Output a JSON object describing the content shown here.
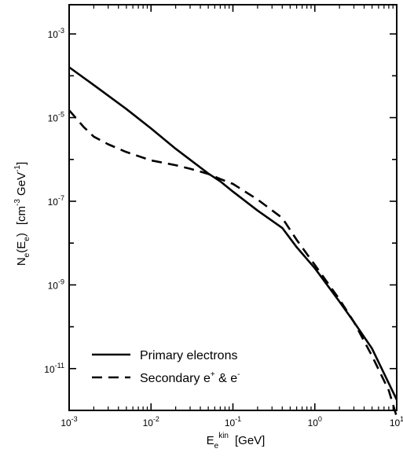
{
  "chart_data": {
    "type": "line",
    "xscale": "log",
    "yscale": "log",
    "xlim": [
      0.001,
      10
    ],
    "ylim": [
      1e-12,
      0.005
    ],
    "xlabel": {
      "base": "E",
      "sub": "e",
      "sup": "kin",
      "unit": "[GeV]"
    },
    "ylabel": {
      "base": "N",
      "sub": "e",
      "arg_base": "E",
      "arg_sub": "e",
      "unit_prefix": "[cm",
      "unit_sup1": "-3",
      "unit_mid": " GeV",
      "unit_sup2": "-1",
      "unit_suffix": "]"
    },
    "x_ticks": [
      {
        "value": 0.001,
        "base": "10",
        "exp": "-3"
      },
      {
        "value": 0.01,
        "base": "10",
        "exp": "-2"
      },
      {
        "value": 0.1,
        "base": "10",
        "exp": "-1"
      },
      {
        "value": 1,
        "base": "10",
        "exp": "0"
      },
      {
        "value": 10,
        "base": "10",
        "exp": "1"
      }
    ],
    "y_ticks": [
      {
        "value": 0.001,
        "base": "10",
        "exp": "-3"
      },
      {
        "value": 1e-05,
        "base": "10",
        "exp": "-5"
      },
      {
        "value": 1e-07,
        "base": "10",
        "exp": "-7"
      },
      {
        "value": 1e-09,
        "base": "10",
        "exp": "-9"
      },
      {
        "value": 1e-11,
        "base": "10",
        "exp": "-11"
      }
    ],
    "legend_position": "bottom-left",
    "series": [
      {
        "name": "Primary electrons",
        "style": "solid",
        "color": "#000000",
        "x": [
          0.001,
          0.002,
          0.005,
          0.01,
          0.02,
          0.05,
          0.07,
          0.1,
          0.2,
          0.4,
          0.6,
          1,
          2,
          3,
          5,
          10
        ],
        "y": [
          0.00016,
          6e-05,
          1.6e-05,
          5.5e-06,
          1.8e-06,
          4.6e-07,
          3e-07,
          1.7e-07,
          6e-08,
          2.3e-08,
          8e-09,
          2.5e-09,
          4e-10,
          1.3e-10,
          3e-11,
          1.8e-12
        ]
      },
      {
        "name": "Secondary e+ & e-",
        "style": "dashed",
        "color": "#000000",
        "x": [
          0.001,
          0.0015,
          0.002,
          0.003,
          0.005,
          0.01,
          0.02,
          0.03,
          0.05,
          0.07,
          0.1,
          0.2,
          0.4,
          0.6,
          1,
          2,
          3,
          5,
          8,
          10
        ],
        "y": [
          1.5e-05,
          6e-06,
          3.5e-06,
          2.3e-06,
          1.5e-06,
          9.5e-07,
          7.3e-07,
          6e-07,
          4.5e-07,
          3.4e-07,
          2.6e-07,
          1.1e-07,
          4e-08,
          1.2e-08,
          3e-09,
          4.5e-10,
          1.3e-10,
          2e-11,
          3e-12,
          7e-13
        ]
      }
    ],
    "legend": [
      {
        "series": 0,
        "label": "Primary electrons"
      },
      {
        "series": 1,
        "label": "Secondary e",
        "sup": "+",
        "mid": " & e",
        "sup2": "-"
      }
    ]
  }
}
